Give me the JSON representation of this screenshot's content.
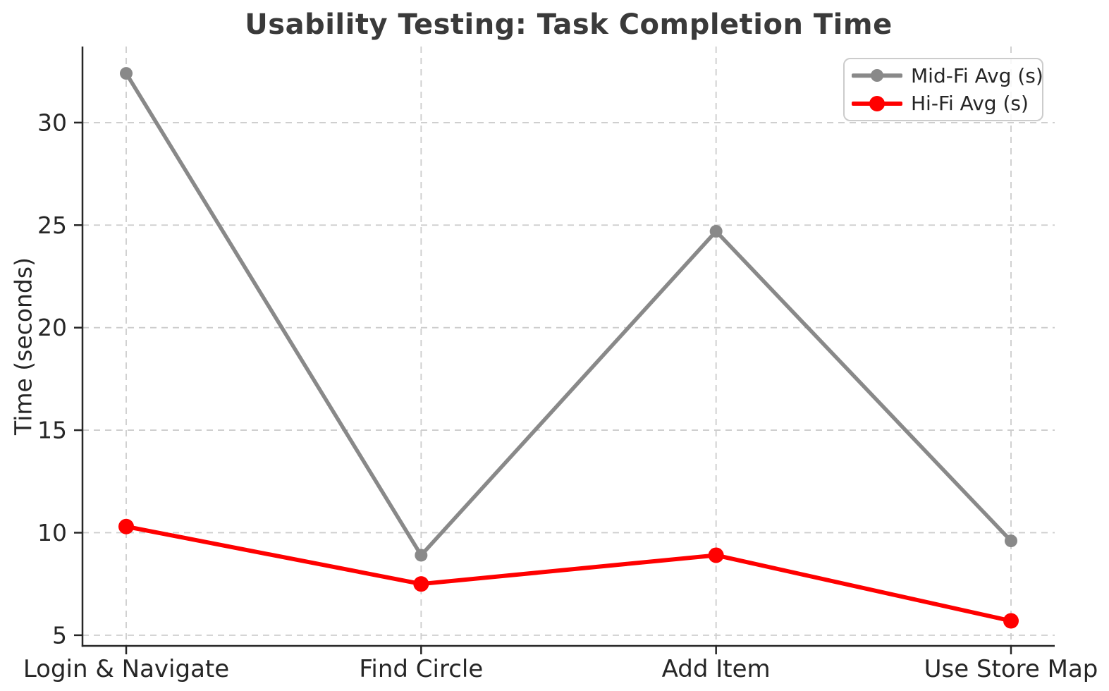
{
  "chart_data": {
    "type": "line",
    "title": "Usability Testing: Task Completion Time",
    "xlabel": "",
    "ylabel": "Time (seconds)",
    "categories": [
      "Login & Navigate",
      "Find Circle",
      "Add Item",
      "Use Store Map"
    ],
    "series": [
      {
        "name": "Mid-Fi Avg (s)",
        "color": "#898989",
        "values": [
          32.4,
          8.9,
          24.7,
          9.6
        ],
        "line_width": 5.5,
        "marker_radius": 9
      },
      {
        "name": "Hi-Fi Avg (s)",
        "color": "#ff0000",
        "values": [
          10.3,
          7.5,
          8.9,
          5.7
        ],
        "line_width": 6,
        "marker_radius": 11
      }
    ],
    "yticks": [
      5,
      10,
      15,
      20,
      25,
      30
    ],
    "ylim": [
      4.48,
      33.71
    ],
    "grid": true,
    "grid_style": "dashed",
    "legend_position": "upper right",
    "style": {
      "grid_color": "#cccccc",
      "spine_color": "#262626",
      "tick_color": "#262626",
      "tick_label_color": "#262626",
      "title_color": "#3a3a3a",
      "background": "#ffffff",
      "legend_border_color": "#cccccc"
    }
  }
}
